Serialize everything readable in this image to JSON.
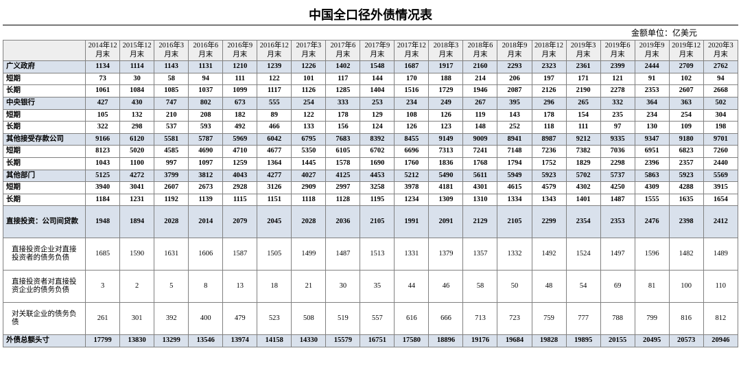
{
  "title": "中国全口径外债情况表",
  "unit_label": "金额单位：亿美元",
  "columns": [
    "2014年12月末",
    "2015年12月末",
    "2016年3月末",
    "2016年6月末",
    "2016年9月末",
    "2016年12月末",
    "2017年3月末",
    "2017年6月末",
    "2017年9月末",
    "2017年12月末",
    "2018年3月末",
    "2018年6月末",
    "2018年9月末",
    "2018年12月末",
    "2019年3月末",
    "2019年6月末",
    "2019年9月末",
    "2019年12月末",
    "2020年3月末"
  ],
  "rows": [
    {
      "label": "广义政府",
      "shaded": true,
      "bold": true,
      "vals": [
        1134,
        1114,
        1143,
        1131,
        1210,
        1239,
        1226,
        1402,
        1548,
        1687,
        1917,
        2160,
        2293,
        2323,
        2361,
        2399,
        2444,
        2709,
        2762
      ]
    },
    {
      "label": "短期",
      "shaded": false,
      "bold": true,
      "vals": [
        73,
        30,
        58,
        94,
        111,
        122,
        101,
        117,
        144,
        170,
        188,
        214,
        206,
        197,
        171,
        121,
        91,
        102,
        94
      ]
    },
    {
      "label": "长期",
      "shaded": false,
      "bold": true,
      "vals": [
        1061,
        1084,
        1085,
        1037,
        1099,
        1117,
        1126,
        1285,
        1404,
        1516,
        1729,
        1946,
        2087,
        2126,
        2190,
        2278,
        2353,
        2607,
        2668
      ]
    },
    {
      "label": "中央银行",
      "shaded": true,
      "bold": true,
      "vals": [
        427,
        430,
        747,
        802,
        673,
        555,
        254,
        333,
        253,
        234,
        249,
        267,
        395,
        296,
        265,
        332,
        364,
        363,
        502
      ]
    },
    {
      "label": "短期",
      "shaded": false,
      "bold": true,
      "vals": [
        105,
        132,
        210,
        208,
        182,
        89,
        122,
        178,
        129,
        108,
        126,
        119,
        143,
        178,
        154,
        235,
        234,
        254,
        304
      ]
    },
    {
      "label": "长期",
      "shaded": false,
      "bold": true,
      "vals": [
        322,
        298,
        537,
        593,
        492,
        466,
        133,
        156,
        124,
        126,
        123,
        148,
        252,
        118,
        111,
        97,
        130,
        109,
        198
      ]
    },
    {
      "label": "其他接受存款公司",
      "shaded": true,
      "bold": true,
      "vals": [
        9166,
        6120,
        5581,
        5787,
        5969,
        6042,
        6795,
        7683,
        8392,
        8455,
        9149,
        9009,
        8941,
        8987,
        9212,
        9335,
        9347,
        9180,
        9701
      ]
    },
    {
      "label": "短期",
      "shaded": false,
      "bold": true,
      "vals": [
        8123,
        5020,
        4585,
        4690,
        4710,
        4677,
        5350,
        6105,
        6702,
        6696,
        7313,
        7241,
        7148,
        7236,
        7382,
        7036,
        6951,
        6823,
        7260
      ]
    },
    {
      "label": "长期",
      "shaded": false,
      "bold": true,
      "vals": [
        1043,
        1100,
        997,
        1097,
        1259,
        1364,
        1445,
        1578,
        1690,
        1760,
        1836,
        1768,
        1794,
        1752,
        1829,
        2298,
        2396,
        2357,
        2440
      ]
    },
    {
      "label": "其他部门",
      "shaded": true,
      "bold": true,
      "vals": [
        5125,
        4272,
        3799,
        3812,
        4043,
        4277,
        4027,
        4125,
        4453,
        5212,
        5490,
        5611,
        5949,
        5923,
        5702,
        5737,
        5863,
        5923,
        5569
      ]
    },
    {
      "label": "短期",
      "shaded": false,
      "bold": true,
      "vals": [
        3940,
        3041,
        2607,
        2673,
        2928,
        3126,
        2909,
        2997,
        3258,
        3978,
        4181,
        4301,
        4615,
        4579,
        4302,
        4250,
        4309,
        4288,
        3915
      ]
    },
    {
      "label": "长期",
      "shaded": false,
      "bold": true,
      "vals": [
        1184,
        1231,
        1192,
        1139,
        1115,
        1151,
        1118,
        1128,
        1195,
        1234,
        1309,
        1310,
        1334,
        1343,
        1401,
        1487,
        1555,
        1635,
        1654
      ]
    },
    {
      "label": "直接投资：公司间贷款",
      "shaded": true,
      "bold": true,
      "tall": true,
      "vals": [
        1948,
        1894,
        2028,
        2014,
        2079,
        2045,
        2028,
        2036,
        2105,
        1991,
        2091,
        2129,
        2105,
        2299,
        2354,
        2353,
        2476,
        2398,
        2412
      ]
    },
    {
      "label": "直接投资企业对直接投资者的债务负债",
      "shaded": false,
      "bold": false,
      "tall": true,
      "indent": true,
      "vals": [
        1685,
        1590,
        1631,
        1606,
        1587,
        1505,
        1499,
        1487,
        1513,
        1331,
        1379,
        1357,
        1332,
        1492,
        1524,
        1497,
        1596,
        1482,
        1489
      ]
    },
    {
      "label": "直接投资者对直接投资企业的债务负债",
      "shaded": false,
      "bold": false,
      "tall": true,
      "indent": true,
      "vals": [
        3,
        2,
        5,
        8,
        13,
        18,
        21,
        30,
        35,
        44,
        46,
        58,
        50,
        48,
        54,
        69,
        81,
        100,
        110
      ]
    },
    {
      "label": "对关联企业的债务负债",
      "shaded": false,
      "bold": false,
      "tall": true,
      "indent": true,
      "vals": [
        261,
        301,
        392,
        400,
        479,
        523,
        508,
        519,
        557,
        616,
        666,
        713,
        723,
        759,
        777,
        788,
        799,
        816,
        812
      ]
    },
    {
      "label": "外债总额头寸",
      "shaded": true,
      "bold": true,
      "vals": [
        17799,
        13830,
        13299,
        13546,
        13974,
        14158,
        14330,
        15579,
        16751,
        17580,
        18896,
        19176,
        19684,
        19828,
        19895,
        20155,
        20495,
        20573,
        20946
      ]
    }
  ],
  "style": {
    "shaded_bg": "#d9e1ec",
    "header_bg": "#eeeeee",
    "border_color": "#808080",
    "font_family": "SimSun",
    "title_fontsize": 18,
    "cell_fontsize": 10.5
  }
}
